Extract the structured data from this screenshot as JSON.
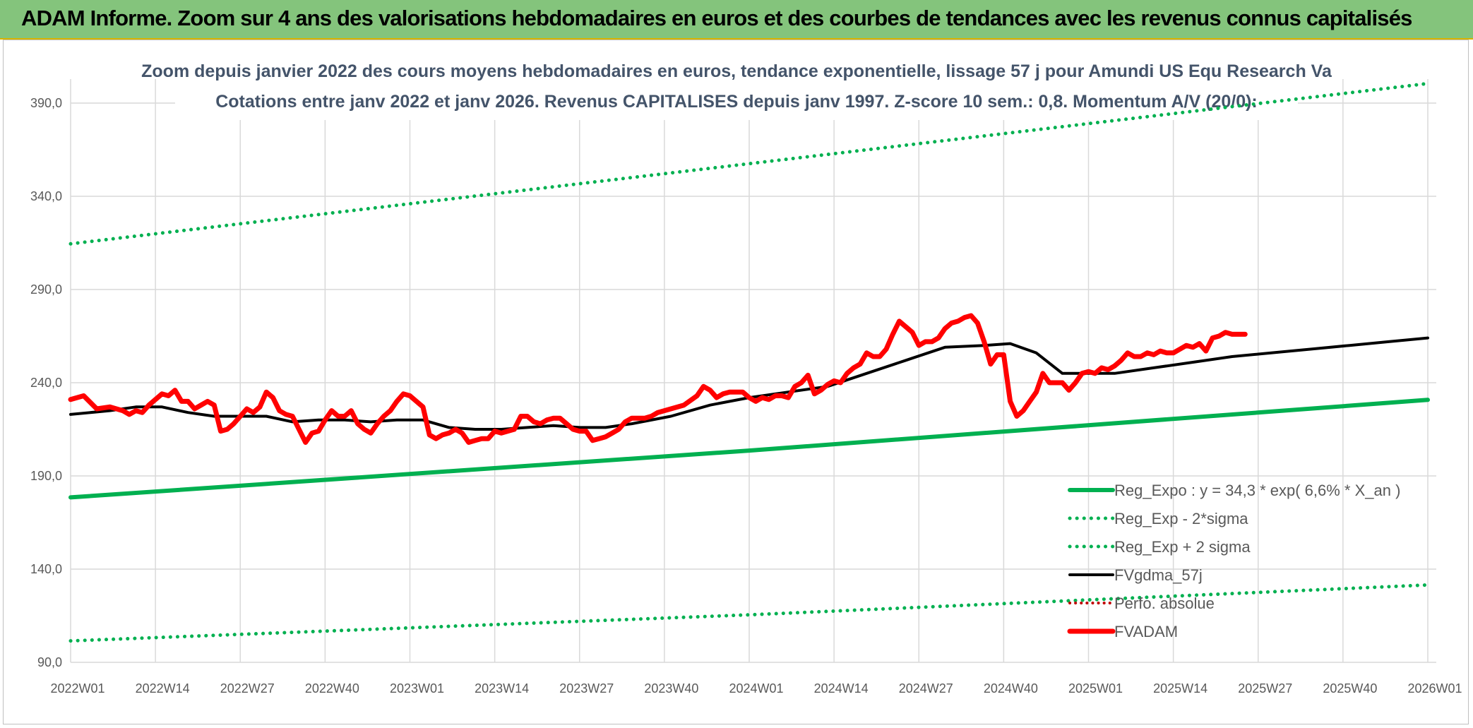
{
  "banner": {
    "title": "ADAM Informe. Zoom sur 4 ans des valorisations hebdomadaires en euros et des courbes de tendances avec les revenus connus capitalisés"
  },
  "chart_data": {
    "type": "line",
    "title_line1": "Zoom depuis janvier 2022 des cours moyens hebdomadaires en euros, tendance exponentielle, lissage 57 j pour Amundi US Equ Research Va",
    "title_line2": "Cotations entre janv 2022 et janv 2026. Revenus CAPITALISES depuis janv 1997. Z-score 10 sem.: 0,8. Momentum A/V (20/0):",
    "xlabel": "",
    "ylabel": "",
    "x_tick_labels": [
      "2022W01",
      "2022W14",
      "2022W27",
      "2022W40",
      "2023W01",
      "2023W14",
      "2023W27",
      "2023W40",
      "2024W01",
      "2024W14",
      "2024W27",
      "2024W40",
      "2025W01",
      "2025W14",
      "2025W27",
      "2025W40",
      "2026W01"
    ],
    "y_tick_labels": [
      "90,0",
      "140,0",
      "190,0",
      "240,0",
      "290,0",
      "340,0",
      "390,0"
    ],
    "ylim": [
      90,
      400
    ],
    "xlim_weeks": [
      0,
      208
    ],
    "legend_position": "bottom-right",
    "series": [
      {
        "name": "Reg_Expo : y = 34,3 * exp( 6,6% *  X_an )",
        "color": "#00b050",
        "style": "solid",
        "points": [
          [
            0,
            178.5
          ],
          [
            104,
            203.6
          ],
          [
            208,
            230.8
          ]
        ]
      },
      {
        "name": "Reg_Exp - 2*sigma",
        "color": "#00b050",
        "style": "dotted",
        "points": [
          [
            0,
            101.5
          ],
          [
            104,
            115.5
          ],
          [
            208,
            131.5
          ]
        ]
      },
      {
        "name": "Reg_Exp + 2 sigma",
        "color": "#00b050",
        "style": "dotted",
        "points": [
          [
            0,
            314.5
          ],
          [
            104,
            357.5
          ],
          [
            208,
            400.5
          ]
        ]
      },
      {
        "name": "FVgdma_57j",
        "color": "#000000",
        "style": "solid",
        "points": [
          [
            0,
            223
          ],
          [
            6,
            225
          ],
          [
            10,
            227
          ],
          [
            14,
            227
          ],
          [
            18,
            224
          ],
          [
            22,
            222
          ],
          [
            26,
            222
          ],
          [
            30,
            222
          ],
          [
            34,
            219
          ],
          [
            38,
            220
          ],
          [
            42,
            220
          ],
          [
            46,
            219
          ],
          [
            50,
            220
          ],
          [
            54,
            220
          ],
          [
            58,
            216
          ],
          [
            62,
            215
          ],
          [
            66,
            215
          ],
          [
            70,
            216
          ],
          [
            74,
            217
          ],
          [
            78,
            216
          ],
          [
            82,
            216
          ],
          [
            86,
            218
          ],
          [
            92,
            222
          ],
          [
            98,
            228
          ],
          [
            104,
            232
          ],
          [
            110,
            235
          ],
          [
            116,
            238
          ],
          [
            122,
            245
          ],
          [
            128,
            252
          ],
          [
            134,
            259
          ],
          [
            140,
            260
          ],
          [
            144,
            261
          ],
          [
            148,
            256
          ],
          [
            152,
            245
          ],
          [
            156,
            245
          ],
          [
            160,
            245
          ],
          [
            166,
            248
          ],
          [
            172,
            251
          ],
          [
            178,
            254
          ],
          [
            184,
            256
          ],
          [
            190,
            258
          ],
          [
            196,
            260
          ],
          [
            202,
            262
          ],
          [
            208,
            264
          ]
        ]
      },
      {
        "name": "Perfo. absolue",
        "color": "#c00000",
        "style": "dotted",
        "points": []
      },
      {
        "name": "FVADAM",
        "color": "#ff0000",
        "style": "solid",
        "points": [
          [
            0,
            231
          ],
          [
            2,
            233
          ],
          [
            4,
            226
          ],
          [
            6,
            227
          ],
          [
            8,
            225
          ],
          [
            9,
            223
          ],
          [
            10,
            225
          ],
          [
            11,
            224
          ],
          [
            12,
            228
          ],
          [
            14,
            234
          ],
          [
            15,
            233
          ],
          [
            16,
            236
          ],
          [
            17,
            230
          ],
          [
            18,
            230
          ],
          [
            19,
            226
          ],
          [
            20,
            228
          ],
          [
            21,
            230
          ],
          [
            22,
            228
          ],
          [
            23,
            214
          ],
          [
            24,
            215
          ],
          [
            25,
            218
          ],
          [
            26,
            222
          ],
          [
            27,
            226
          ],
          [
            28,
            224
          ],
          [
            29,
            227
          ],
          [
            30,
            235
          ],
          [
            31,
            232
          ],
          [
            32,
            225
          ],
          [
            33,
            223
          ],
          [
            34,
            222
          ],
          [
            35,
            215
          ],
          [
            36,
            208
          ],
          [
            37,
            213
          ],
          [
            38,
            214
          ],
          [
            39,
            220
          ],
          [
            40,
            225
          ],
          [
            41,
            222
          ],
          [
            42,
            222
          ],
          [
            43,
            225
          ],
          [
            44,
            218
          ],
          [
            45,
            215
          ],
          [
            46,
            213
          ],
          [
            47,
            218
          ],
          [
            48,
            222
          ],
          [
            49,
            225
          ],
          [
            50,
            230
          ],
          [
            51,
            234
          ],
          [
            52,
            233
          ],
          [
            53,
            230
          ],
          [
            54,
            227
          ],
          [
            55,
            212
          ],
          [
            56,
            210
          ],
          [
            57,
            212
          ],
          [
            58,
            213
          ],
          [
            59,
            215
          ],
          [
            60,
            213
          ],
          [
            61,
            208
          ],
          [
            62,
            209
          ],
          [
            63,
            210
          ],
          [
            64,
            210
          ],
          [
            65,
            214
          ],
          [
            66,
            213
          ],
          [
            67,
            214
          ],
          [
            68,
            215
          ],
          [
            69,
            222
          ],
          [
            70,
            222
          ],
          [
            71,
            219
          ],
          [
            72,
            218
          ],
          [
            73,
            220
          ],
          [
            74,
            221
          ],
          [
            75,
            221
          ],
          [
            76,
            218
          ],
          [
            77,
            215
          ],
          [
            78,
            214
          ],
          [
            79,
            214
          ],
          [
            80,
            209
          ],
          [
            81,
            210
          ],
          [
            82,
            211
          ],
          [
            83,
            213
          ],
          [
            84,
            215
          ],
          [
            85,
            219
          ],
          [
            86,
            221
          ],
          [
            88,
            221
          ],
          [
            89,
            222
          ],
          [
            90,
            224
          ],
          [
            92,
            226
          ],
          [
            94,
            228
          ],
          [
            96,
            233
          ],
          [
            97,
            238
          ],
          [
            98,
            236
          ],
          [
            99,
            232
          ],
          [
            100,
            234
          ],
          [
            101,
            235
          ],
          [
            102,
            235
          ],
          [
            103,
            235
          ],
          [
            104,
            232
          ],
          [
            105,
            230
          ],
          [
            106,
            232
          ],
          [
            107,
            231
          ],
          [
            108,
            233
          ],
          [
            109,
            233
          ],
          [
            110,
            232
          ],
          [
            111,
            238
          ],
          [
            112,
            240
          ],
          [
            113,
            244
          ],
          [
            114,
            234
          ],
          [
            115,
            236
          ],
          [
            116,
            239
          ],
          [
            117,
            241
          ],
          [
            118,
            240
          ],
          [
            119,
            245
          ],
          [
            120,
            248
          ],
          [
            121,
            250
          ],
          [
            122,
            256
          ],
          [
            123,
            254
          ],
          [
            124,
            254
          ],
          [
            125,
            258
          ],
          [
            126,
            266
          ],
          [
            127,
            273
          ],
          [
            128,
            270
          ],
          [
            129,
            267
          ],
          [
            130,
            260
          ],
          [
            131,
            262
          ],
          [
            132,
            262
          ],
          [
            133,
            264
          ],
          [
            134,
            269
          ],
          [
            135,
            272
          ],
          [
            136,
            273
          ],
          [
            137,
            275
          ],
          [
            138,
            276
          ],
          [
            139,
            272
          ],
          [
            140,
            262
          ],
          [
            141,
            250
          ],
          [
            142,
            255
          ],
          [
            143,
            255
          ],
          [
            144,
            230
          ],
          [
            145,
            222
          ],
          [
            146,
            225
          ],
          [
            147,
            230
          ],
          [
            148,
            235
          ],
          [
            149,
            245
          ],
          [
            150,
            240
          ],
          [
            151,
            240
          ],
          [
            152,
            240
          ],
          [
            153,
            236
          ],
          [
            154,
            240
          ],
          [
            155,
            245
          ],
          [
            156,
            246
          ],
          [
            157,
            245
          ],
          [
            158,
            248
          ],
          [
            159,
            247
          ],
          [
            160,
            249
          ],
          [
            161,
            252
          ],
          [
            162,
            256
          ],
          [
            163,
            254
          ],
          [
            164,
            254
          ],
          [
            165,
            256
          ],
          [
            166,
            255
          ],
          [
            167,
            257
          ],
          [
            168,
            256
          ],
          [
            169,
            256
          ],
          [
            170,
            258
          ],
          [
            171,
            260
          ],
          [
            172,
            259
          ],
          [
            173,
            261
          ],
          [
            174,
            257
          ],
          [
            175,
            264
          ],
          [
            176,
            265
          ],
          [
            177,
            267
          ],
          [
            178,
            266
          ],
          [
            180,
            266
          ]
        ]
      }
    ]
  }
}
